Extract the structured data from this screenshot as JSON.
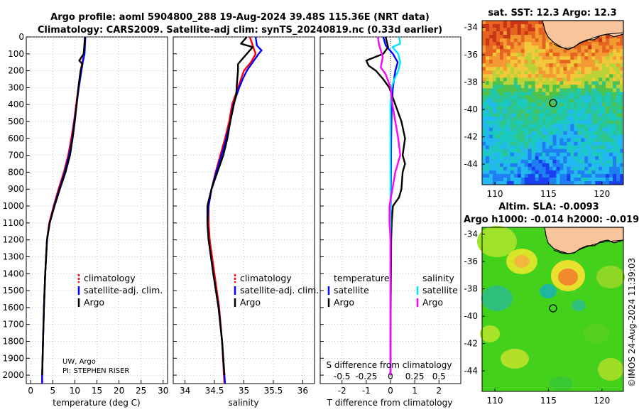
{
  "header": {
    "line1": "Argo profile: aoml 5904800_288 19-Aug-2024 39.48S 115.36E (NRT data)",
    "line2": "Climatology: CARS2009. Satellite-adj clim: synTS_20240819.nc (0.33d earlier)"
  },
  "colors": {
    "argo": "#000000",
    "climatology": "#ff0000",
    "satellite_clim": "#0000ff",
    "temp_diff_sat": "#0000ff",
    "temp_diff_argo": "#000000",
    "sal_diff_sat": "#00e5ff",
    "sal_diff_argo": "#ff00ff"
  },
  "chart_data": [
    {
      "id": "temperature",
      "type": "line",
      "xlabel": "temperature (deg C)",
      "ylabel": "depth",
      "xlim": [
        -1,
        31
      ],
      "ylim": [
        2050,
        0
      ],
      "x_ticks": [
        0,
        5,
        10,
        15,
        20,
        25,
        30
      ],
      "x_tick_labels": [
        "0",
        "5",
        "10",
        "15",
        "20",
        "25",
        "30"
      ],
      "y_ticks": [
        0,
        100,
        200,
        300,
        400,
        500,
        600,
        700,
        800,
        900,
        1000,
        1100,
        1200,
        1300,
        1400,
        1500,
        1600,
        1700,
        1800,
        1900,
        2000
      ],
      "legend": [
        "climatology",
        "satellite-adj. clim.",
        "Argo"
      ],
      "annotation": [
        "UW, Argo",
        "PI: STEPHEN RISER"
      ],
      "series": [
        {
          "name": "climatology",
          "color": "#ff0000",
          "depth": [
            0,
            100,
            150,
            200,
            300,
            400,
            500,
            600,
            700,
            800,
            900,
            1000,
            1100,
            1200,
            1400,
            1600,
            1800,
            2000,
            2050
          ],
          "values": [
            12.3,
            12.1,
            11.7,
            11.3,
            10.8,
            10.3,
            9.8,
            9.2,
            8.5,
            7.5,
            6.3,
            5.2,
            4.2,
            3.7,
            3.3,
            3.0,
            2.8,
            2.6,
            2.6
          ]
        },
        {
          "name": "satellite-adj. clim.",
          "color": "#0000ff",
          "depth": [
            0,
            100,
            150,
            200,
            300,
            400,
            500,
            600,
            700,
            800,
            900,
            1000,
            1100,
            1200,
            1400,
            1600,
            1800,
            2000,
            2050
          ],
          "values": [
            12.4,
            12.2,
            11.8,
            11.5,
            10.9,
            10.4,
            9.9,
            9.4,
            8.7,
            7.7,
            6.5,
            5.3,
            4.3,
            3.7,
            3.3,
            3.0,
            2.8,
            2.6,
            2.6
          ]
        },
        {
          "name": "Argo",
          "color": "#000000",
          "depth": [
            0,
            100,
            140,
            160,
            200,
            300,
            400,
            500,
            600,
            700,
            800,
            900,
            1000,
            1100,
            1200,
            1400,
            1600,
            1800,
            2000
          ],
          "values": [
            12.3,
            12.0,
            11.0,
            11.7,
            11.3,
            10.8,
            10.4,
            10.0,
            9.5,
            8.9,
            7.9,
            6.6,
            5.4,
            4.3,
            3.7,
            3.3,
            3.0,
            2.8,
            2.6
          ]
        }
      ]
    },
    {
      "id": "salinity",
      "type": "line",
      "xlabel": "salinity",
      "xlim": [
        33.8,
        36.2
      ],
      "ylim": [
        2050,
        0
      ],
      "x_ticks": [
        34,
        34.5,
        35,
        35.5,
        36
      ],
      "x_tick_labels": [
        "34",
        "34.5",
        "35",
        "35.5",
        "36"
      ],
      "legend": [
        "climatology",
        "satellite-adj. clim.",
        "Argo"
      ],
      "series": [
        {
          "name": "climatology",
          "color": "#ff0000",
          "depth": [
            0,
            50,
            100,
            150,
            200,
            250,
            300,
            400,
            500,
            600,
            700,
            800,
            900,
            1000,
            1100,
            1200,
            1400,
            1600,
            1800,
            2000,
            2050
          ],
          "values": [
            35.1,
            35.15,
            35.2,
            35.12,
            35.0,
            34.95,
            34.9,
            34.8,
            34.75,
            34.68,
            34.6,
            34.52,
            34.45,
            34.4,
            34.4,
            34.42,
            34.5,
            34.58,
            34.63,
            34.66,
            34.67
          ]
        },
        {
          "name": "satellite-adj. clim.",
          "color": "#0000ff",
          "depth": [
            0,
            50,
            80,
            100,
            150,
            200,
            250,
            300,
            400,
            500,
            600,
            700,
            800,
            900,
            1000,
            1100,
            1200,
            1400,
            1600,
            1800,
            2000,
            2050
          ],
          "values": [
            35.2,
            35.22,
            35.3,
            35.25,
            35.15,
            35.05,
            34.98,
            34.92,
            34.82,
            34.77,
            34.7,
            34.62,
            34.53,
            34.45,
            34.4,
            34.38,
            34.4,
            34.48,
            34.57,
            34.63,
            34.67,
            34.68
          ]
        },
        {
          "name": "Argo",
          "color": "#000000",
          "depth": [
            0,
            40,
            60,
            100,
            160,
            200,
            280,
            340,
            400,
            500,
            600,
            700,
            800,
            900,
            1000,
            1100,
            1200,
            1400,
            1600,
            1800,
            2000
          ],
          "values": [
            35.05,
            34.95,
            35.15,
            35.05,
            34.9,
            34.9,
            34.88,
            34.87,
            34.83,
            34.77,
            34.72,
            34.65,
            34.55,
            34.45,
            34.38,
            34.38,
            34.4,
            34.48,
            34.57,
            34.63,
            34.67
          ]
        }
      ]
    },
    {
      "id": "difference",
      "type": "line",
      "xlabel": "T difference from climatology",
      "top_label": "S difference from climatology",
      "xlim": [
        -2.9,
        2.9
      ],
      "ylim": [
        2050,
        0
      ],
      "x_ticks": [
        -2,
        -1,
        0,
        1,
        2
      ],
      "x_tick_labels": [
        "-2",
        "-1",
        "0",
        "1",
        "2"
      ],
      "s_ticks": [
        -0.5,
        -0.25,
        0,
        0.25,
        0.5
      ],
      "s_tick_labels": [
        "-0.5",
        "-0.25",
        "0",
        "0.25",
        "0.5"
      ],
      "s_scale_note": "S axis spans -0.72 to 0.72 across panel",
      "s_xlim": [
        -0.725,
        0.725
      ],
      "legend": [
        "temperature",
        "salinity",
        "satellite",
        "Argo",
        "satellite",
        "Argo"
      ],
      "series": [
        {
          "name": "temperature satellite",
          "axis": "T",
          "color": "#0000ff",
          "depth": [
            0,
            50,
            100,
            150,
            200,
            300,
            400,
            600,
            800,
            1000,
            1200,
            1600,
            2000
          ],
          "values": [
            -0.3,
            -0.2,
            0.1,
            0.3,
            0.2,
            0.1,
            0.05,
            0.03,
            0.02,
            0.01,
            0.0,
            0.0,
            0.0
          ]
        },
        {
          "name": "temperature Argo",
          "axis": "T",
          "color": "#000000",
          "depth": [
            0,
            60,
            100,
            140,
            170,
            200,
            250,
            300,
            400,
            500,
            600,
            700,
            750,
            800,
            900,
            950,
            1000,
            1100,
            1200,
            1400,
            1600,
            1800,
            2000
          ],
          "values": [
            -0.2,
            -0.1,
            -0.3,
            -1.0,
            -0.9,
            -0.6,
            -0.3,
            -0.05,
            0.2,
            0.45,
            0.6,
            0.5,
            0.6,
            0.5,
            0.45,
            0.35,
            0.1,
            0.05,
            0.03,
            0.02,
            0.01,
            0.0,
            0.0
          ]
        },
        {
          "name": "salinity satellite",
          "axis": "S",
          "color": "#00e5ff",
          "depth": [
            0,
            40,
            60,
            100,
            150,
            200,
            250,
            300,
            400,
            600,
            800,
            1000,
            1200,
            1600,
            2000
          ],
          "values": [
            0.09,
            0.1,
            0.02,
            0.08,
            0.1,
            0.08,
            0.04,
            0.01,
            0.0,
            0.0,
            0.0,
            0.0,
            0.0,
            0.0,
            0.0
          ]
        },
        {
          "name": "salinity Argo",
          "axis": "S",
          "color": "#ff00ff",
          "depth": [
            0,
            40,
            80,
            120,
            180,
            220,
            300,
            400,
            600,
            700,
            800,
            900,
            1000,
            1100,
            1200,
            1600,
            2000
          ],
          "values": [
            -0.13,
            -0.12,
            -0.1,
            -0.08,
            -0.1,
            -0.05,
            0.0,
            0.02,
            0.08,
            0.1,
            0.05,
            0.02,
            -0.01,
            -0.01,
            0.0,
            0.0,
            0.0
          ]
        }
      ]
    },
    {
      "id": "sst_map",
      "type": "heatmap",
      "title": "sat. SST: 12.3  Argo: 12.3",
      "lon_range": [
        108.8,
        122
      ],
      "lat_range": [
        -45.5,
        -33.5
      ],
      "x_ticks": [
        110,
        115,
        120
      ],
      "y_ticks": [
        -34,
        -36,
        -38,
        -40,
        -42,
        -44
      ],
      "y_tick_labels": [
        "-34",
        "-36",
        "-38",
        "-40",
        "-42",
        "-44"
      ],
      "float_position": {
        "lon": 115.36,
        "lat": -39.48
      },
      "land_color": "#f8c49b"
    },
    {
      "id": "sla_map",
      "type": "heatmap",
      "title": "Altim. SLA: -0.0093",
      "subtitle": "Argo h1000: -0.014  h2000: -0.019",
      "lon_range": [
        108.8,
        122
      ],
      "lat_range": [
        -45.5,
        -33.5
      ],
      "x_ticks": [
        110,
        115,
        120
      ],
      "y_ticks": [
        -34,
        -36,
        -38,
        -40,
        -42,
        -44
      ],
      "y_tick_labels": [
        "-34",
        "-36",
        "-38",
        "-40",
        "-42",
        "-44"
      ],
      "float_position": {
        "lon": 115.36,
        "lat": -39.48
      },
      "land_color": "#f8c49b"
    }
  ],
  "footer": {
    "credit": "©IMOS 24-Aug-2024 11:39:03"
  }
}
